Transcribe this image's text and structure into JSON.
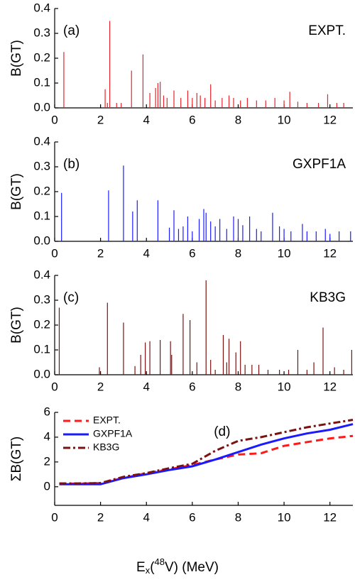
{
  "chart_data": [
    {
      "type": "bar",
      "panel_label": "(a)",
      "annotation": "EXPT.",
      "ylabel": "B(GT)",
      "color": "#e8232a",
      "xlim": [
        0,
        13
      ],
      "xticks": [
        0,
        2,
        4,
        6,
        8,
        10,
        12
      ],
      "ylim": [
        0,
        0.4
      ],
      "yticks": [
        {
          "value": 0,
          "label": "0.0"
        },
        0.1,
        0.2,
        0.3,
        0.4
      ],
      "x": [
        0.4,
        2.2,
        2.3,
        2.4,
        2.7,
        2.9,
        3.35,
        3.85,
        4.15,
        4.4,
        4.5,
        4.6,
        4.75,
        4.9,
        5.2,
        5.5,
        5.8,
        6.0,
        6.2,
        6.35,
        6.55,
        6.8,
        7.0,
        7.3,
        7.6,
        7.8,
        8.1,
        8.4,
        8.8,
        9.2,
        9.6,
        10.0,
        10.25,
        10.6,
        11.0,
        11.5,
        11.9,
        12.3,
        12.6
      ],
      "values": [
        0.225,
        0.075,
        0.02,
        0.35,
        0.02,
        0.02,
        0.15,
        0.215,
        0.06,
        0.08,
        0.1,
        0.105,
        0.05,
        0.04,
        0.07,
        0.04,
        0.07,
        0.04,
        0.06,
        0.05,
        0.04,
        0.095,
        0.03,
        0.04,
        0.05,
        0.04,
        0.03,
        0.04,
        0.03,
        0.03,
        0.04,
        0.03,
        0.065,
        0.025,
        0.02,
        0.02,
        0.055,
        0.02,
        0.02
      ]
    },
    {
      "type": "bar",
      "panel_label": "(b)",
      "annotation": "GXPF1A",
      "ylabel": "B(GT)",
      "color": "#1a1aff",
      "xlim": [
        0,
        13
      ],
      "xticks": [
        0,
        2,
        4,
        6,
        8,
        10,
        12
      ],
      "ylim": [
        0,
        0.4
      ],
      "yticks": [
        {
          "value": 0,
          "label": "0.0"
        },
        0.1,
        0.2,
        0.3,
        0.4
      ],
      "x": [
        0.3,
        2.35,
        3.0,
        3.4,
        3.6,
        4.5,
        5.0,
        5.2,
        5.4,
        5.6,
        5.8,
        6.0,
        6.3,
        6.5,
        6.6,
        6.8,
        7.0,
        7.2,
        7.5,
        7.8,
        8.0,
        8.2,
        8.5,
        8.8,
        9.0,
        9.5,
        9.8,
        10.0,
        10.3,
        10.8,
        11.0,
        11.4,
        11.8,
        12.0,
        12.4,
        12.9
      ],
      "values": [
        0.195,
        0.205,
        0.305,
        0.12,
        0.165,
        0.165,
        0.055,
        0.125,
        0.05,
        0.06,
        0.1,
        0.04,
        0.09,
        0.13,
        0.115,
        0.08,
        0.06,
        0.09,
        0.05,
        0.1,
        0.09,
        0.065,
        0.1,
        0.05,
        0.04,
        0.115,
        0.06,
        0.05,
        0.04,
        0.07,
        0.04,
        0.04,
        0.05,
        0.03,
        0.04,
        0.04
      ]
    },
    {
      "type": "bar",
      "panel_label": "(c)",
      "annotation": "KB3G",
      "ylabel": "B(GT)",
      "color": "#7a1212",
      "xlim": [
        0,
        13
      ],
      "xticks": [
        0,
        2,
        4,
        6,
        8,
        10,
        12
      ],
      "ylim": [
        0,
        0.4
      ],
      "yticks": [
        {
          "value": 0,
          "label": "0.0"
        },
        0.1,
        0.2,
        0.3,
        0.4
      ],
      "x": [
        0.2,
        1.95,
        2.3,
        3.0,
        3.5,
        3.75,
        3.95,
        4.15,
        4.6,
        5.05,
        5.1,
        5.6,
        5.9,
        6.2,
        6.6,
        6.8,
        7.0,
        7.35,
        7.5,
        7.6,
        7.9,
        8.1,
        8.3,
        8.6,
        8.9,
        9.3,
        9.8,
        10.2,
        10.6,
        11.0,
        11.3,
        11.7,
        12.2,
        12.6,
        12.95
      ],
      "values": [
        0.27,
        0.03,
        0.29,
        0.21,
        0.035,
        0.08,
        0.13,
        0.135,
        0.14,
        0.135,
        0.08,
        0.245,
        0.22,
        0.05,
        0.38,
        0.06,
        0.02,
        0.16,
        0.05,
        0.145,
        0.09,
        0.135,
        0.04,
        0.04,
        0.04,
        0.02,
        0.02,
        0.02,
        0.1,
        0.02,
        0.05,
        0.19,
        0.03,
        0.02,
        0.1
      ]
    },
    {
      "type": "line",
      "panel_label": "(d)",
      "ylabel": "ΣB(GT)",
      "xlabel": [
        "E",
        "x",
        "(",
        "48",
        "V) (MeV)"
      ],
      "xlim": [
        0,
        13
      ],
      "xticks": [
        0,
        2,
        4,
        6,
        8,
        10,
        12
      ],
      "ylim": [
        -1.5,
        6
      ],
      "yticks": [
        0,
        2,
        4,
        6
      ],
      "legend": "upper left",
      "x": [
        0.2,
        1,
        2,
        3,
        4,
        5,
        6,
        7,
        8,
        9,
        10,
        11,
        12,
        13
      ],
      "series": [
        {
          "name": "EXPT.",
          "color": "#ff1a1a",
          "dash": "10,6",
          "values": [
            0.25,
            0.25,
            0.3,
            0.7,
            1.1,
            1.4,
            1.75,
            2.2,
            2.6,
            2.7,
            3.3,
            3.6,
            3.9,
            4.1
          ]
        },
        {
          "name": "GXPF1A",
          "color": "#1a1aff",
          "dash": "none",
          "values": [
            0.2,
            0.2,
            0.2,
            0.7,
            1.0,
            1.35,
            1.65,
            2.2,
            2.8,
            3.4,
            3.9,
            4.3,
            4.6,
            5.05
          ]
        },
        {
          "name": "KB3G",
          "color": "#7a1212",
          "dash": "10,4,3,4",
          "values": [
            0.27,
            0.27,
            0.3,
            0.8,
            1.1,
            1.5,
            1.85,
            2.9,
            3.7,
            4.0,
            4.4,
            4.8,
            5.1,
            5.4
          ]
        }
      ]
    }
  ]
}
